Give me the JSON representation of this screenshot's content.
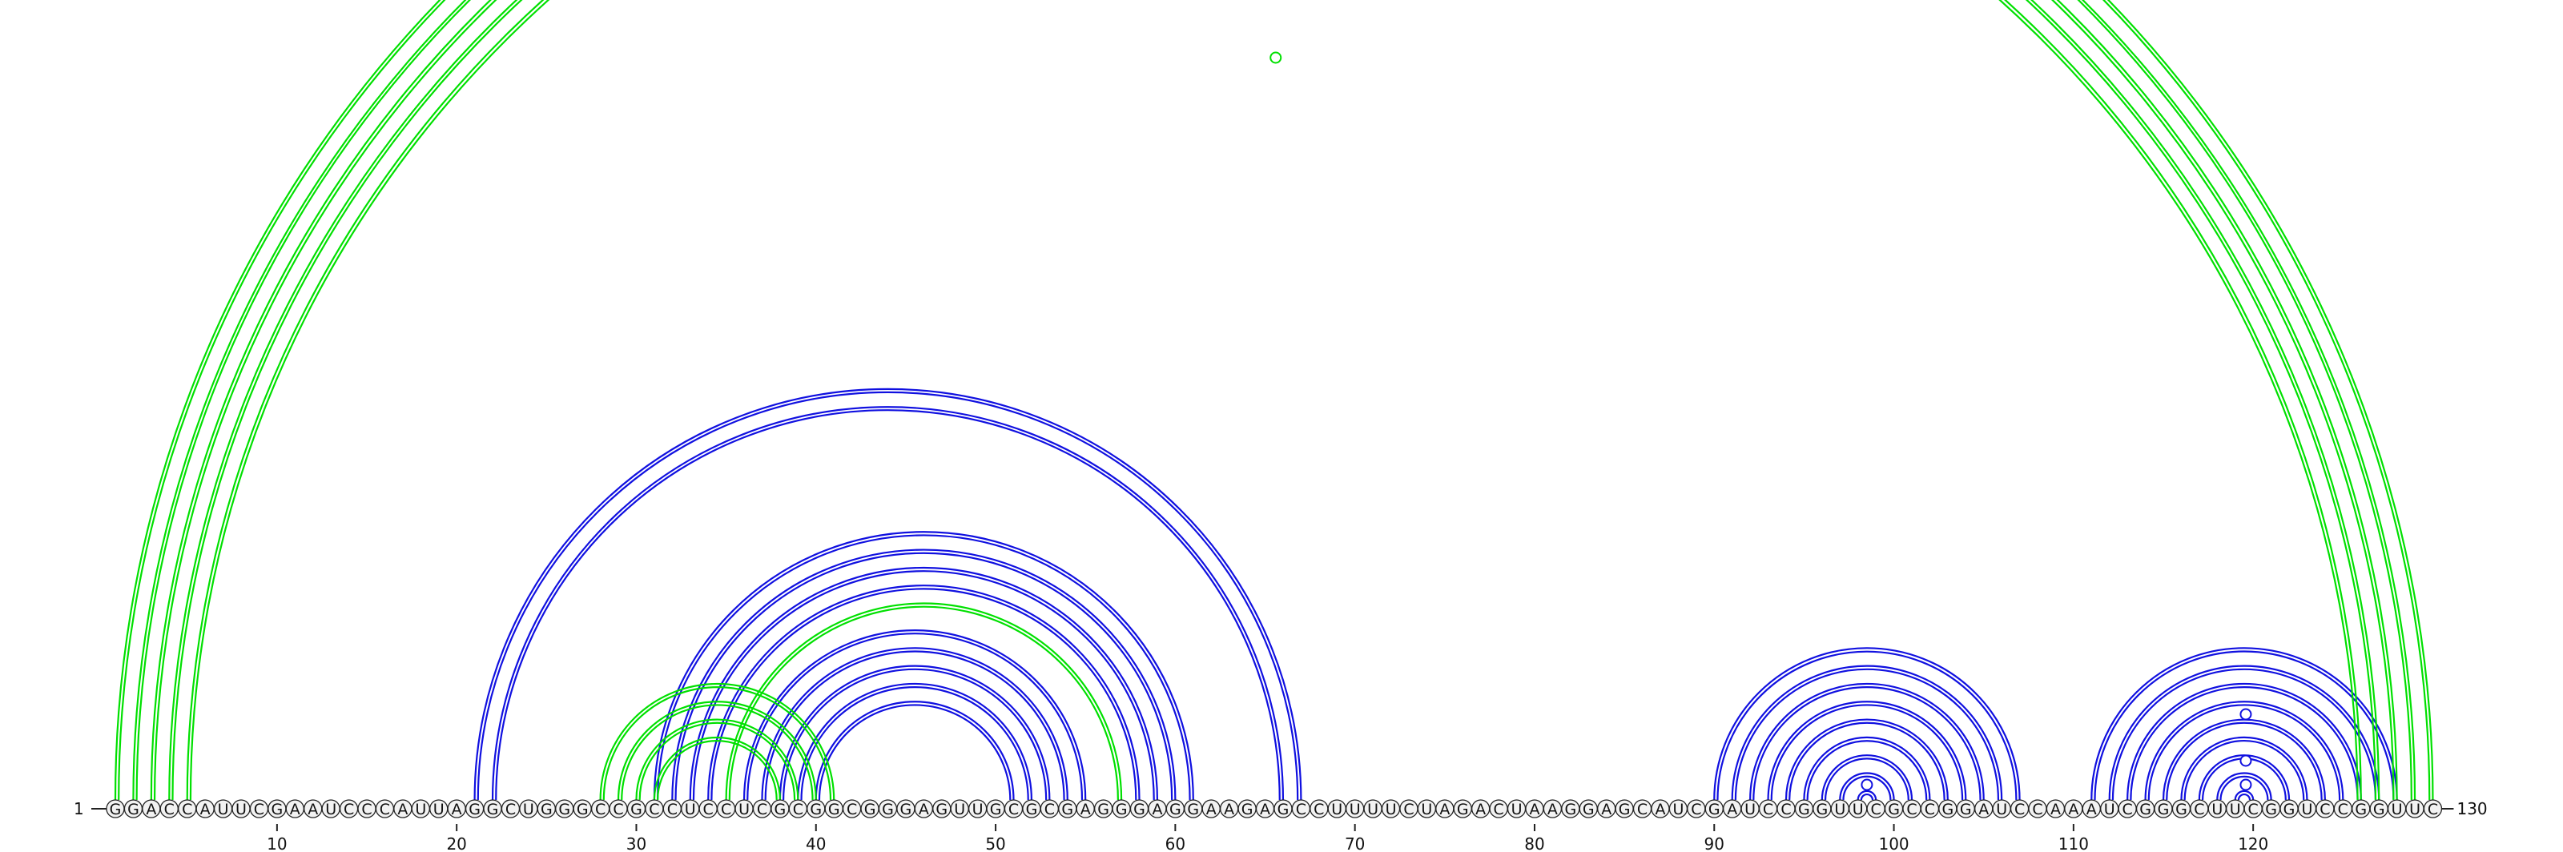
{
  "sequence": "GGACCAUUCGAAUCCCAUUAGGCUGGGCCGCCUCCUCGCGGCGGGAGUUGCGCGAGGGAGGAAGAGCCUUUUCUAGACUAAGGAGCAUCGAUCCGGUUCGCCGGAUCCAAAUCGGGCUUCGGUCCGGUUC",
  "start_label": "1",
  "end_label": "130",
  "axis_ticks": [
    "10",
    "20",
    "30",
    "40",
    "50",
    "60",
    "70",
    "80",
    "90",
    "100",
    "110",
    "120"
  ],
  "colors": {
    "structure_a": "#1010e0",
    "structure_b": "#00e000"
  },
  "chart_data": {
    "type": "arc",
    "length": 130,
    "series": [
      {
        "color": "#1010e0",
        "pairs": [
          [
            21,
            67
          ],
          [
            22,
            66
          ],
          [
            31,
            61
          ],
          [
            32,
            60
          ],
          [
            33,
            59
          ],
          [
            34,
            58
          ],
          [
            36,
            55
          ],
          [
            37,
            54
          ],
          [
            38,
            53
          ],
          [
            39,
            52
          ],
          [
            40,
            51
          ],
          [
            90,
            107
          ],
          [
            91,
            106
          ],
          [
            92,
            105
          ],
          [
            93,
            104
          ],
          [
            94,
            103
          ],
          [
            95,
            102
          ],
          [
            96,
            101
          ],
          [
            97,
            100
          ],
          [
            98,
            99
          ],
          [
            111,
            128
          ],
          [
            112,
            127
          ],
          [
            113,
            126
          ],
          [
            114,
            125
          ],
          [
            115,
            124
          ],
          [
            116,
            123
          ],
          [
            117,
            122
          ],
          [
            118,
            121
          ],
          [
            119,
            120
          ]
        ]
      },
      {
        "color": "#00e000",
        "pairs": [
          [
            1,
            130
          ],
          [
            2,
            129
          ],
          [
            3,
            128
          ],
          [
            4,
            127
          ],
          [
            5,
            126
          ],
          [
            35,
            57
          ],
          [
            28,
            41
          ],
          [
            29,
            40
          ],
          [
            30,
            39
          ],
          [
            31,
            38
          ]
        ]
      }
    ]
  }
}
